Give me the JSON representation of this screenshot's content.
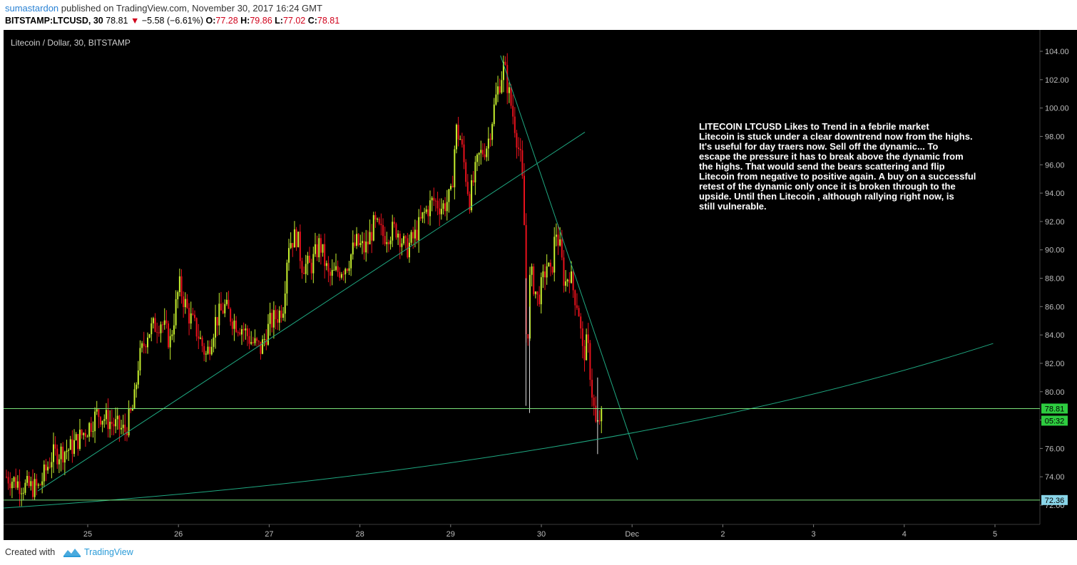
{
  "header": {
    "author": "sumastardon",
    "published_text": "published on TradingView.com, November 30, 2017 16:24 GMT",
    "symbol": "BITSTAMP:LTCUSD, 30",
    "last": "78.81",
    "change": "−5.58 (−6.61%)",
    "o_label": "O:",
    "o": "77.28",
    "h_label": "H:",
    "h": "79.86",
    "l_label": "L:",
    "l": "77.02",
    "c_label": "C:",
    "c": "78.81"
  },
  "footer": {
    "created_with": "Created with",
    "brand": "TradingView"
  },
  "colors": {
    "background": "#000000",
    "up": "#c6ef2e",
    "down": "#e8111c",
    "trendline": "#1fa881",
    "hline": "#7be37b",
    "price_tag": "#2ecc40",
    "support_tag": "#89d4e8"
  },
  "chart_data": {
    "type": "candlestick",
    "title": "Litecoin / Dollar, 30, BITSTAMP",
    "y_axis": {
      "ticks": [
        "104.00",
        "102.00",
        "100.00",
        "98.00",
        "96.00",
        "94.00",
        "92.00",
        "90.00",
        "88.00",
        "86.00",
        "84.00",
        "82.00",
        "80.00",
        "78.00",
        "76.00",
        "74.00",
        "72.00"
      ],
      "range": [
        71.3,
        105.5
      ]
    },
    "x_axis": {
      "ticks": [
        "25",
        "26",
        "27",
        "28",
        "29",
        "30",
        "Dec",
        "2",
        "3",
        "4",
        "5"
      ]
    },
    "price_path": [
      [
        24.1,
        74.0
      ],
      [
        24.3,
        73.3
      ],
      [
        24.45,
        73.2
      ],
      [
        24.6,
        75.5
      ],
      [
        24.8,
        76.0
      ],
      [
        25.0,
        77.5
      ],
      [
        25.1,
        78.5
      ],
      [
        25.3,
        77.6
      ],
      [
        25.4,
        77.2
      ],
      [
        25.5,
        79.0
      ],
      [
        25.55,
        82.0
      ],
      [
        25.65,
        84.2
      ],
      [
        25.8,
        85.0
      ],
      [
        25.9,
        83.5
      ],
      [
        26.0,
        87.5
      ],
      [
        26.1,
        85.5
      ],
      [
        26.2,
        84.2
      ],
      [
        26.3,
        82.5
      ],
      [
        26.4,
        85.0
      ],
      [
        26.5,
        86.0
      ],
      [
        26.6,
        85.0
      ],
      [
        26.7,
        84.5
      ],
      [
        26.8,
        83.5
      ],
      [
        26.9,
        83.0
      ],
      [
        27.0,
        84.8
      ],
      [
        27.1,
        85.5
      ],
      [
        27.15,
        86.2
      ],
      [
        27.2,
        90.5
      ],
      [
        27.3,
        91.0
      ],
      [
        27.35,
        89.0
      ],
      [
        27.45,
        88.8
      ],
      [
        27.55,
        90.5
      ],
      [
        27.65,
        88.0
      ],
      [
        27.75,
        88.5
      ],
      [
        27.85,
        89.0
      ],
      [
        27.95,
        90.5
      ],
      [
        28.05,
        90.0
      ],
      [
        28.15,
        91.8
      ],
      [
        28.25,
        91.0
      ],
      [
        28.4,
        91.5
      ],
      [
        28.5,
        90.0
      ],
      [
        28.6,
        91.0
      ],
      [
        28.7,
        92.5
      ],
      [
        28.8,
        93.5
      ],
      [
        28.9,
        93.0
      ],
      [
        29.0,
        93.8
      ],
      [
        29.05,
        98.5
      ],
      [
        29.1,
        97.8
      ],
      [
        29.2,
        93.5
      ],
      [
        29.3,
        96.5
      ],
      [
        29.4,
        97.5
      ],
      [
        29.5,
        101.0
      ],
      [
        29.58,
        103.0
      ],
      [
        29.65,
        100.5
      ],
      [
        29.7,
        98.8
      ],
      [
        29.77,
        96.0
      ],
      [
        29.8,
        93.0
      ],
      [
        29.83,
        82.0
      ],
      [
        29.87,
        88.5
      ],
      [
        29.95,
        86.5
      ],
      [
        30.0,
        87.5
      ],
      [
        30.05,
        89.0
      ],
      [
        30.1,
        88.0
      ],
      [
        30.15,
        91.5
      ],
      [
        30.2,
        90.0
      ],
      [
        30.25,
        87.5
      ],
      [
        30.3,
        88.5
      ],
      [
        30.35,
        87.0
      ],
      [
        30.4,
        86.0
      ],
      [
        30.45,
        82.5
      ],
      [
        30.5,
        83.5
      ],
      [
        30.55,
        80.0
      ],
      [
        30.6,
        77.2
      ],
      [
        30.66,
        78.81
      ]
    ],
    "lines": [
      {
        "name": "rising-trendline-1",
        "from": [
          24.45,
          73.0
        ],
        "to": [
          30.48,
          98.3
        ]
      },
      {
        "name": "falling-trendline",
        "from": [
          29.55,
          103.7
        ],
        "to": [
          31.06,
          75.2
        ]
      },
      {
        "name": "long-support-curve",
        "from": [
          24.0,
          71.8
        ],
        "to": [
          34.98,
          83.4
        ]
      },
      {
        "name": "horizontal-current",
        "y": 78.81
      },
      {
        "name": "horizontal-support",
        "y": 72.36
      }
    ],
    "price_labels": [
      {
        "name": "last-price",
        "value": "78.81"
      },
      {
        "name": "countdown",
        "value": "05:32"
      },
      {
        "name": "support-level",
        "value": "72.36"
      }
    ],
    "annotation": {
      "line1": "LITECOIN  LTCUSD  Likes to Trend in a febrile market",
      "line2": "Litecoin is stuck under a clear downtrend now from the highs.",
      "line3": "It's useful for day traers now. Sell off the dynamic... To",
      "line4": "escape the pressure it has to break above the dynamic from",
      "line5": "the highs. That would send the bears scattering and flip",
      "line6": "Litecoin from negative to positive again. A buy on a successful",
      "line7": "retest of the dynamic only once it is broken through to the",
      "line8": "upside. Until then Litecoin , although rallying right now, is",
      "line9": "still vulnerable."
    }
  }
}
